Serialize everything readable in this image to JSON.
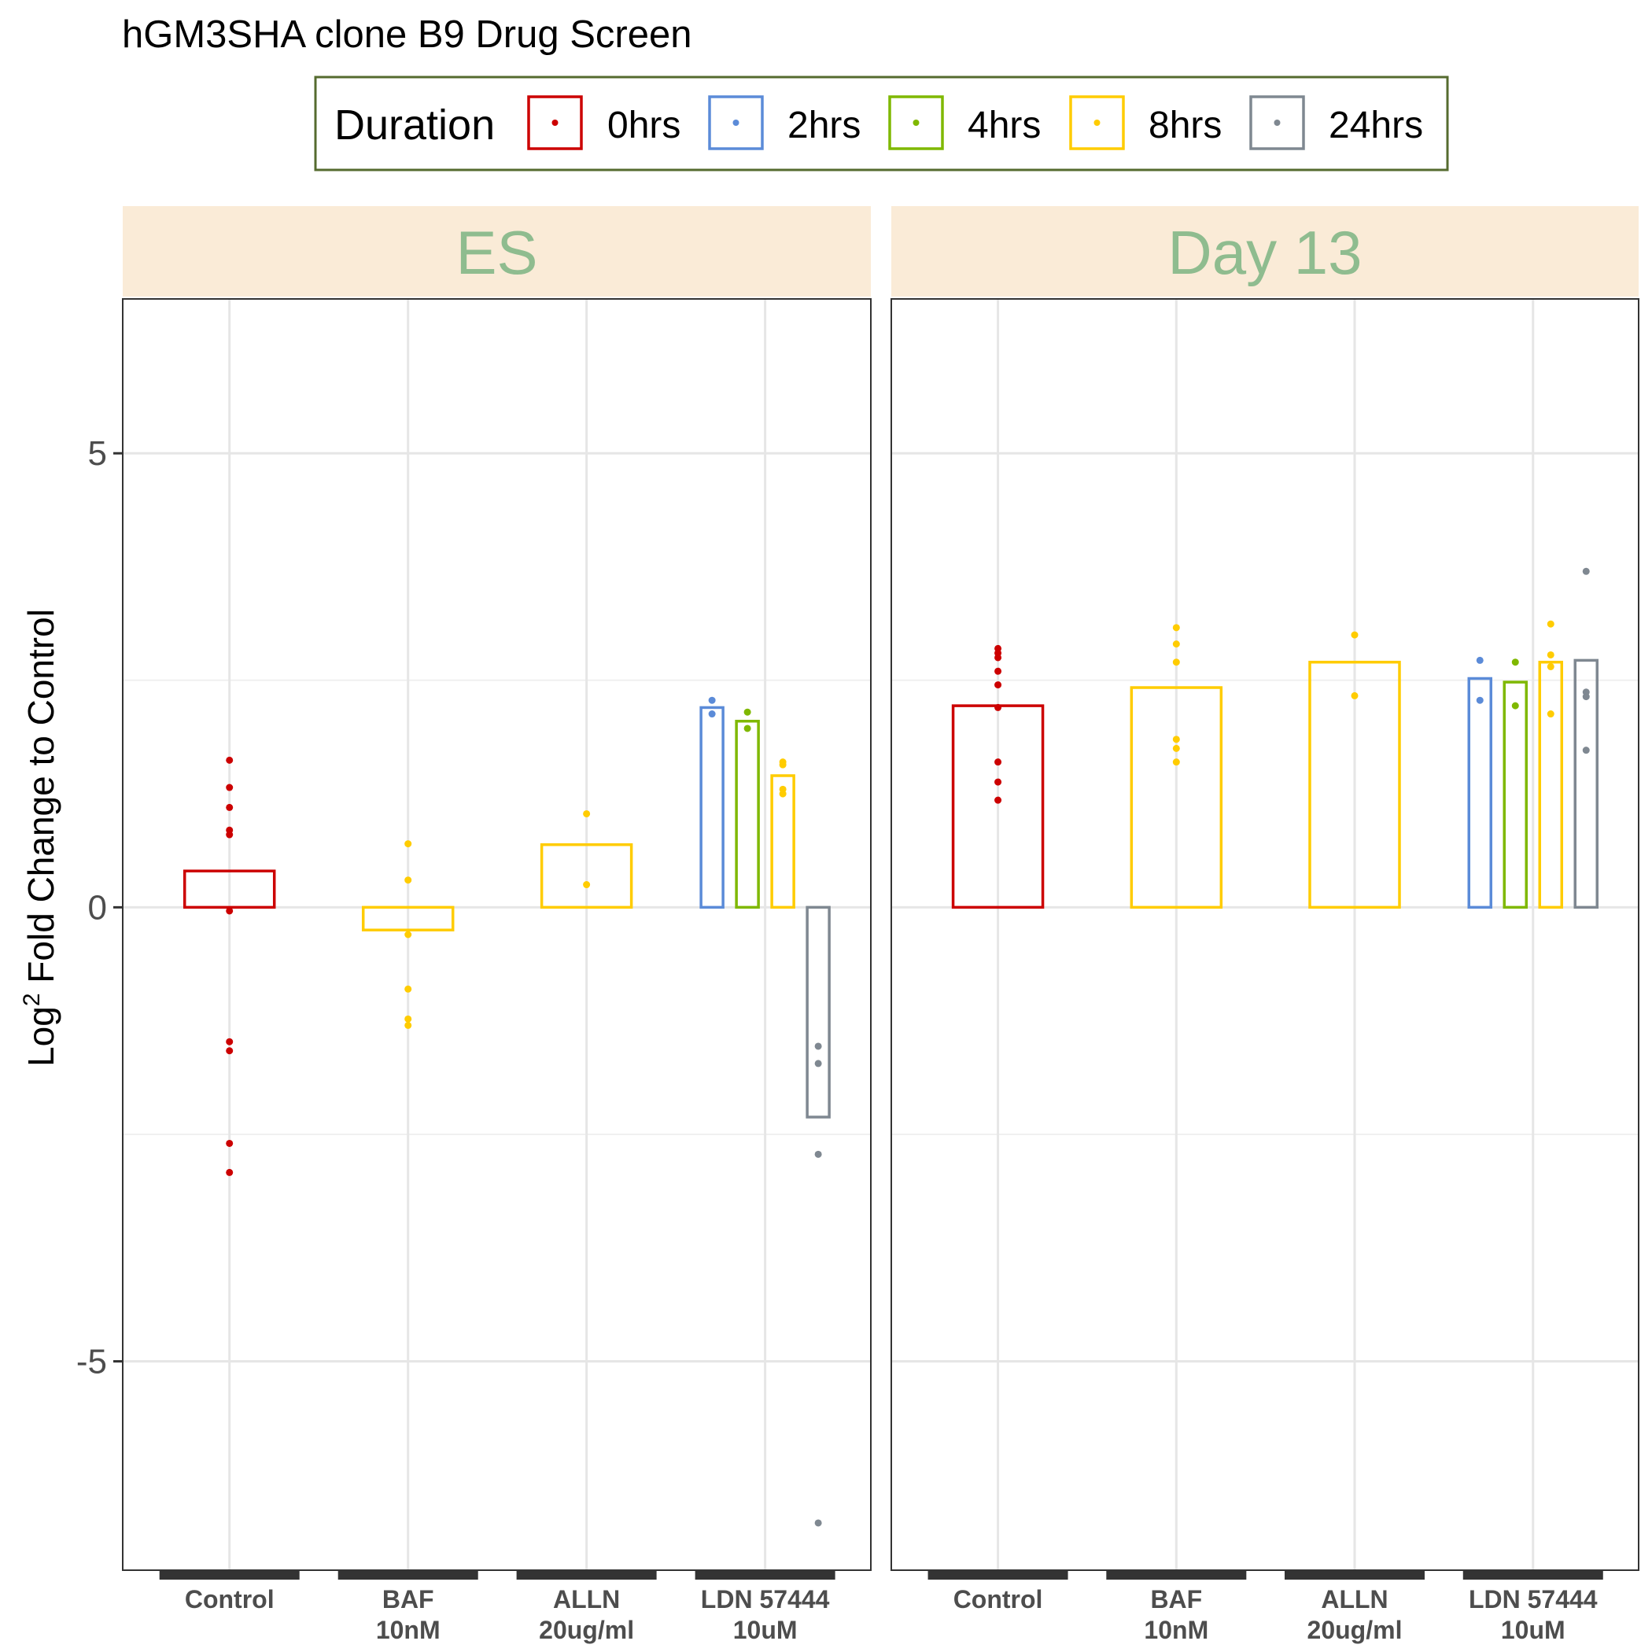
{
  "chart_data": {
    "type": "bar",
    "title": "hGM3SHA clone B9 Drug Screen",
    "ylabel_base": "Log",
    "ylabel_sup": "2",
    "ylabel_rest": " Fold Change to Control",
    "ylim": [
      -7.3,
      6.7
    ],
    "yticks": [
      5,
      0,
      -5
    ],
    "ytick_labels": [
      "5",
      "0",
      "-5"
    ],
    "minor_gridlines": [
      2.5,
      -2.5
    ],
    "grid": true,
    "legend": {
      "title": "Duration",
      "position": "top",
      "entries": [
        {
          "key": "0hrs",
          "label": "0hrs",
          "color": "#cc0000"
        },
        {
          "key": "2hrs",
          "label": "2hrs",
          "color": "#5b8bd8"
        },
        {
          "key": "4hrs",
          "label": "4hrs",
          "color": "#7fb800"
        },
        {
          "key": "8hrs",
          "label": "8hrs",
          "color": "#ffcc00"
        },
        {
          "key": "24hrs",
          "label": "24hrs",
          "color": "#7f8891"
        }
      ]
    },
    "categories": [
      {
        "lines": [
          "Control"
        ]
      },
      {
        "lines": [
          "BAF",
          "10nM"
        ]
      },
      {
        "lines": [
          "ALLN",
          "20ug/ml"
        ]
      },
      {
        "lines": [
          "LDN 57444",
          "10uM"
        ]
      }
    ],
    "panels": [
      {
        "label": "ES",
        "bars": [
          {
            "category": 0,
            "duration": "0hrs",
            "value": 0.4,
            "points": [
              1.62,
              1.32,
              1.1,
              0.85,
              0.8,
              -0.04,
              -1.48,
              -1.58,
              -2.6,
              -2.92
            ]
          },
          {
            "category": 1,
            "duration": "8hrs",
            "value": -0.25,
            "points": [
              0.7,
              0.3,
              -0.3,
              -0.9,
              -1.23,
              -1.3
            ]
          },
          {
            "category": 2,
            "duration": "8hrs",
            "value": 0.69,
            "points": [
              1.03,
              0.25
            ]
          },
          {
            "category": 3,
            "duration": "2hrs",
            "value": 2.2,
            "points": [
              2.28,
              2.13
            ]
          },
          {
            "category": 3,
            "duration": "4hrs",
            "value": 2.05,
            "points": [
              2.15,
              1.97
            ]
          },
          {
            "category": 3,
            "duration": "8hrs",
            "value": 1.45,
            "points": [
              1.6,
              1.57,
              1.3,
              1.25
            ]
          },
          {
            "category": 3,
            "duration": "24hrs",
            "value": -2.31,
            "points": [
              -1.53,
              -1.72,
              -2.72,
              -6.78
            ]
          }
        ]
      },
      {
        "label": "Day 13",
        "bars": [
          {
            "category": 0,
            "duration": "0hrs",
            "value": 2.22,
            "points": [
              2.85,
              2.8,
              2.75,
              2.6,
              2.45,
              2.2,
              1.6,
              1.38,
              1.18
            ]
          },
          {
            "category": 1,
            "duration": "8hrs",
            "value": 2.42,
            "points": [
              3.08,
              2.9,
              2.7,
              1.85,
              1.75,
              1.6
            ]
          },
          {
            "category": 2,
            "duration": "8hrs",
            "value": 2.7,
            "points": [
              3.0,
              2.33
            ]
          },
          {
            "category": 3,
            "duration": "2hrs",
            "value": 2.52,
            "points": [
              2.72,
              2.28
            ]
          },
          {
            "category": 3,
            "duration": "4hrs",
            "value": 2.48,
            "points": [
              2.7,
              2.22
            ]
          },
          {
            "category": 3,
            "duration": "8hrs",
            "value": 2.7,
            "points": [
              3.12,
              2.78,
              2.65,
              2.13
            ]
          },
          {
            "category": 3,
            "duration": "24hrs",
            "value": 2.72,
            "points": [
              3.7,
              2.37,
              2.32,
              1.73
            ]
          }
        ]
      }
    ]
  }
}
